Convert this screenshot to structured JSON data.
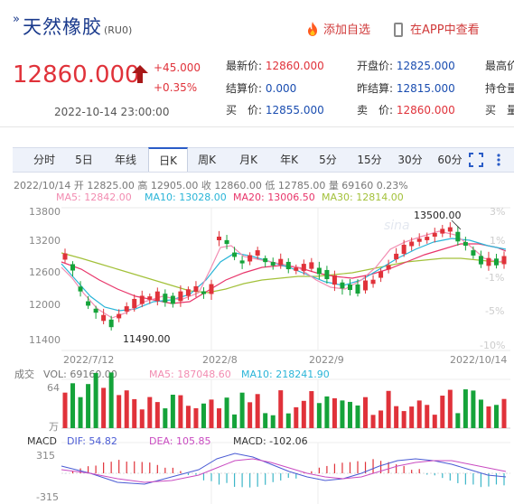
{
  "header": {
    "title": "天然橡胶",
    "code": "(RU0)",
    "fav_label": "添加自选",
    "app_label": "在APP中查看"
  },
  "quote": {
    "price": "12860.000",
    "change": "+45.000",
    "change_pct": "+0.35%",
    "datetime": "2022-10-14 23:00:00",
    "fields": [
      {
        "label": "最新价:",
        "value": "12860.000"
      },
      {
        "label": "结算价:",
        "value": "0.000"
      },
      {
        "label": "买　价:",
        "value": "12855.000"
      },
      {
        "label": "开盘价:",
        "value": "12825.000"
      },
      {
        "label": "昨结算:",
        "value": "12815.000"
      },
      {
        "label": "卖　价:",
        "value": "12860.000"
      },
      {
        "label": "最高价"
      },
      {
        "label": "持仓量"
      },
      {
        "label": "买　量"
      }
    ]
  },
  "tabs": [
    "分时",
    "5日",
    "年线",
    "日K",
    "周K",
    "月K",
    "年K",
    "5分",
    "15分",
    "30分",
    "60分"
  ],
  "active_tab": "日K",
  "chart_info": {
    "line1": "2022/10/14 开 12825.00 高 12905.00 收 12860.00 低 12785.00 量 69160 0.23%",
    "ma5": "MA5: 12842.00",
    "ma10": "MA10: 13028.00",
    "ma20": "MA20: 13006.50",
    "ma30": "MA30: 12814.00",
    "vol_label": "成交",
    "vol": "VOL: 69160.00",
    "vol_ma5": "MA5: 187048.60",
    "vol_ma10": "MA10: 218241.90",
    "macd_label": "MACD",
    "dif": "DIF: 54.82",
    "dea": "DEA: 105.85",
    "macd": "MACD: -102.06",
    "watermark": "sina"
  },
  "colors": {
    "up": "#e0323a",
    "down": "#15a33a",
    "ma5": "#f28cb1",
    "ma10": "#2ab5d8",
    "ma20": "#e8356a",
    "ma30": "#a3c13a",
    "dif": "#4a5bd4",
    "dea": "#c94bc1"
  },
  "chart_data": {
    "type": "candlestick",
    "y_ticks": [
      "13800",
      "13200",
      "12600",
      "12000",
      "11400"
    ],
    "pct_ticks": [
      "3%",
      "1%",
      "-1%",
      "-5%",
      "-10%"
    ],
    "x_ticks": [
      "2022/7/12",
      "2022/8",
      "2022/9",
      "2022/10/14"
    ],
    "high_label": "13500.00",
    "low_label": "11490.00",
    "vol_ticks": [
      "64",
      "万"
    ],
    "macd_ticks": [
      "315",
      "-315"
    ]
  }
}
